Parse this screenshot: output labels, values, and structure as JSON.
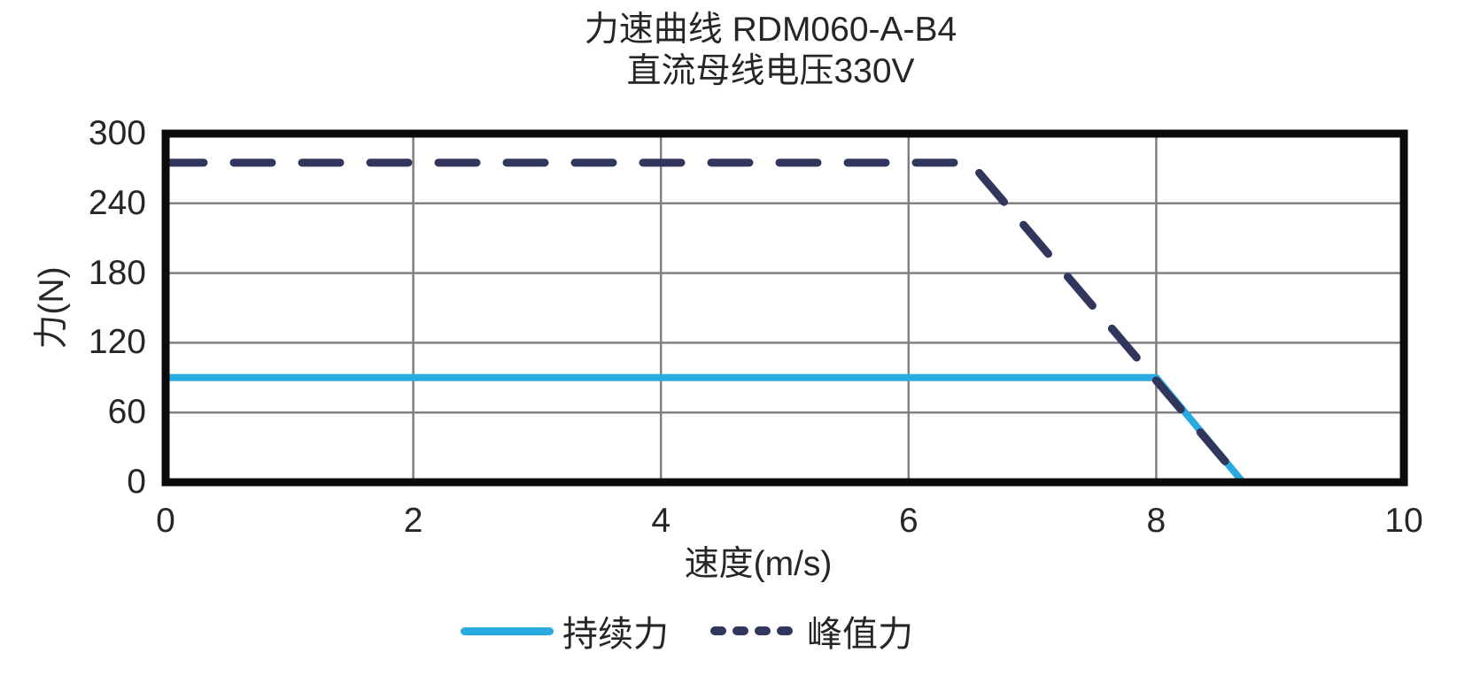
{
  "title": {
    "line1": "力速曲线 RDM060-A-B4",
    "line2": "直流母线电压330V"
  },
  "axes": {
    "x_label": "速度(m/s)",
    "y_label": "力(N)"
  },
  "legend": {
    "items": [
      {
        "label": "持续力",
        "style": "solid"
      },
      {
        "label": "峰值力",
        "style": "dashed"
      }
    ]
  },
  "colors": {
    "continuous_line": "#29ABE2",
    "peak_line": "#31365C",
    "grid": "#808080",
    "border": "#0B0B0B",
    "text": "#262626"
  },
  "chart_data": {
    "type": "line",
    "title": "力速曲线 RDM060-A-B4",
    "subtitle": "直流母线电压330V",
    "xlabel": "速度(m/s)",
    "ylabel": "力(N)",
    "xlim": [
      0,
      10
    ],
    "ylim": [
      0,
      300
    ],
    "x_ticks": [
      0,
      2,
      4,
      6,
      8,
      10
    ],
    "y_ticks": [
      0,
      60,
      120,
      180,
      240,
      300
    ],
    "grid": true,
    "legend_position": "bottom",
    "series": [
      {
        "name": "持续力",
        "style": "solid",
        "color": "#29ABE2",
        "points": [
          [
            0,
            90
          ],
          [
            8,
            90
          ],
          [
            8.7,
            0
          ]
        ]
      },
      {
        "name": "峰值力",
        "style": "dashed",
        "color": "#31365C",
        "points": [
          [
            0,
            275
          ],
          [
            6.5,
            275
          ],
          [
            8.7,
            0
          ]
        ]
      }
    ]
  }
}
